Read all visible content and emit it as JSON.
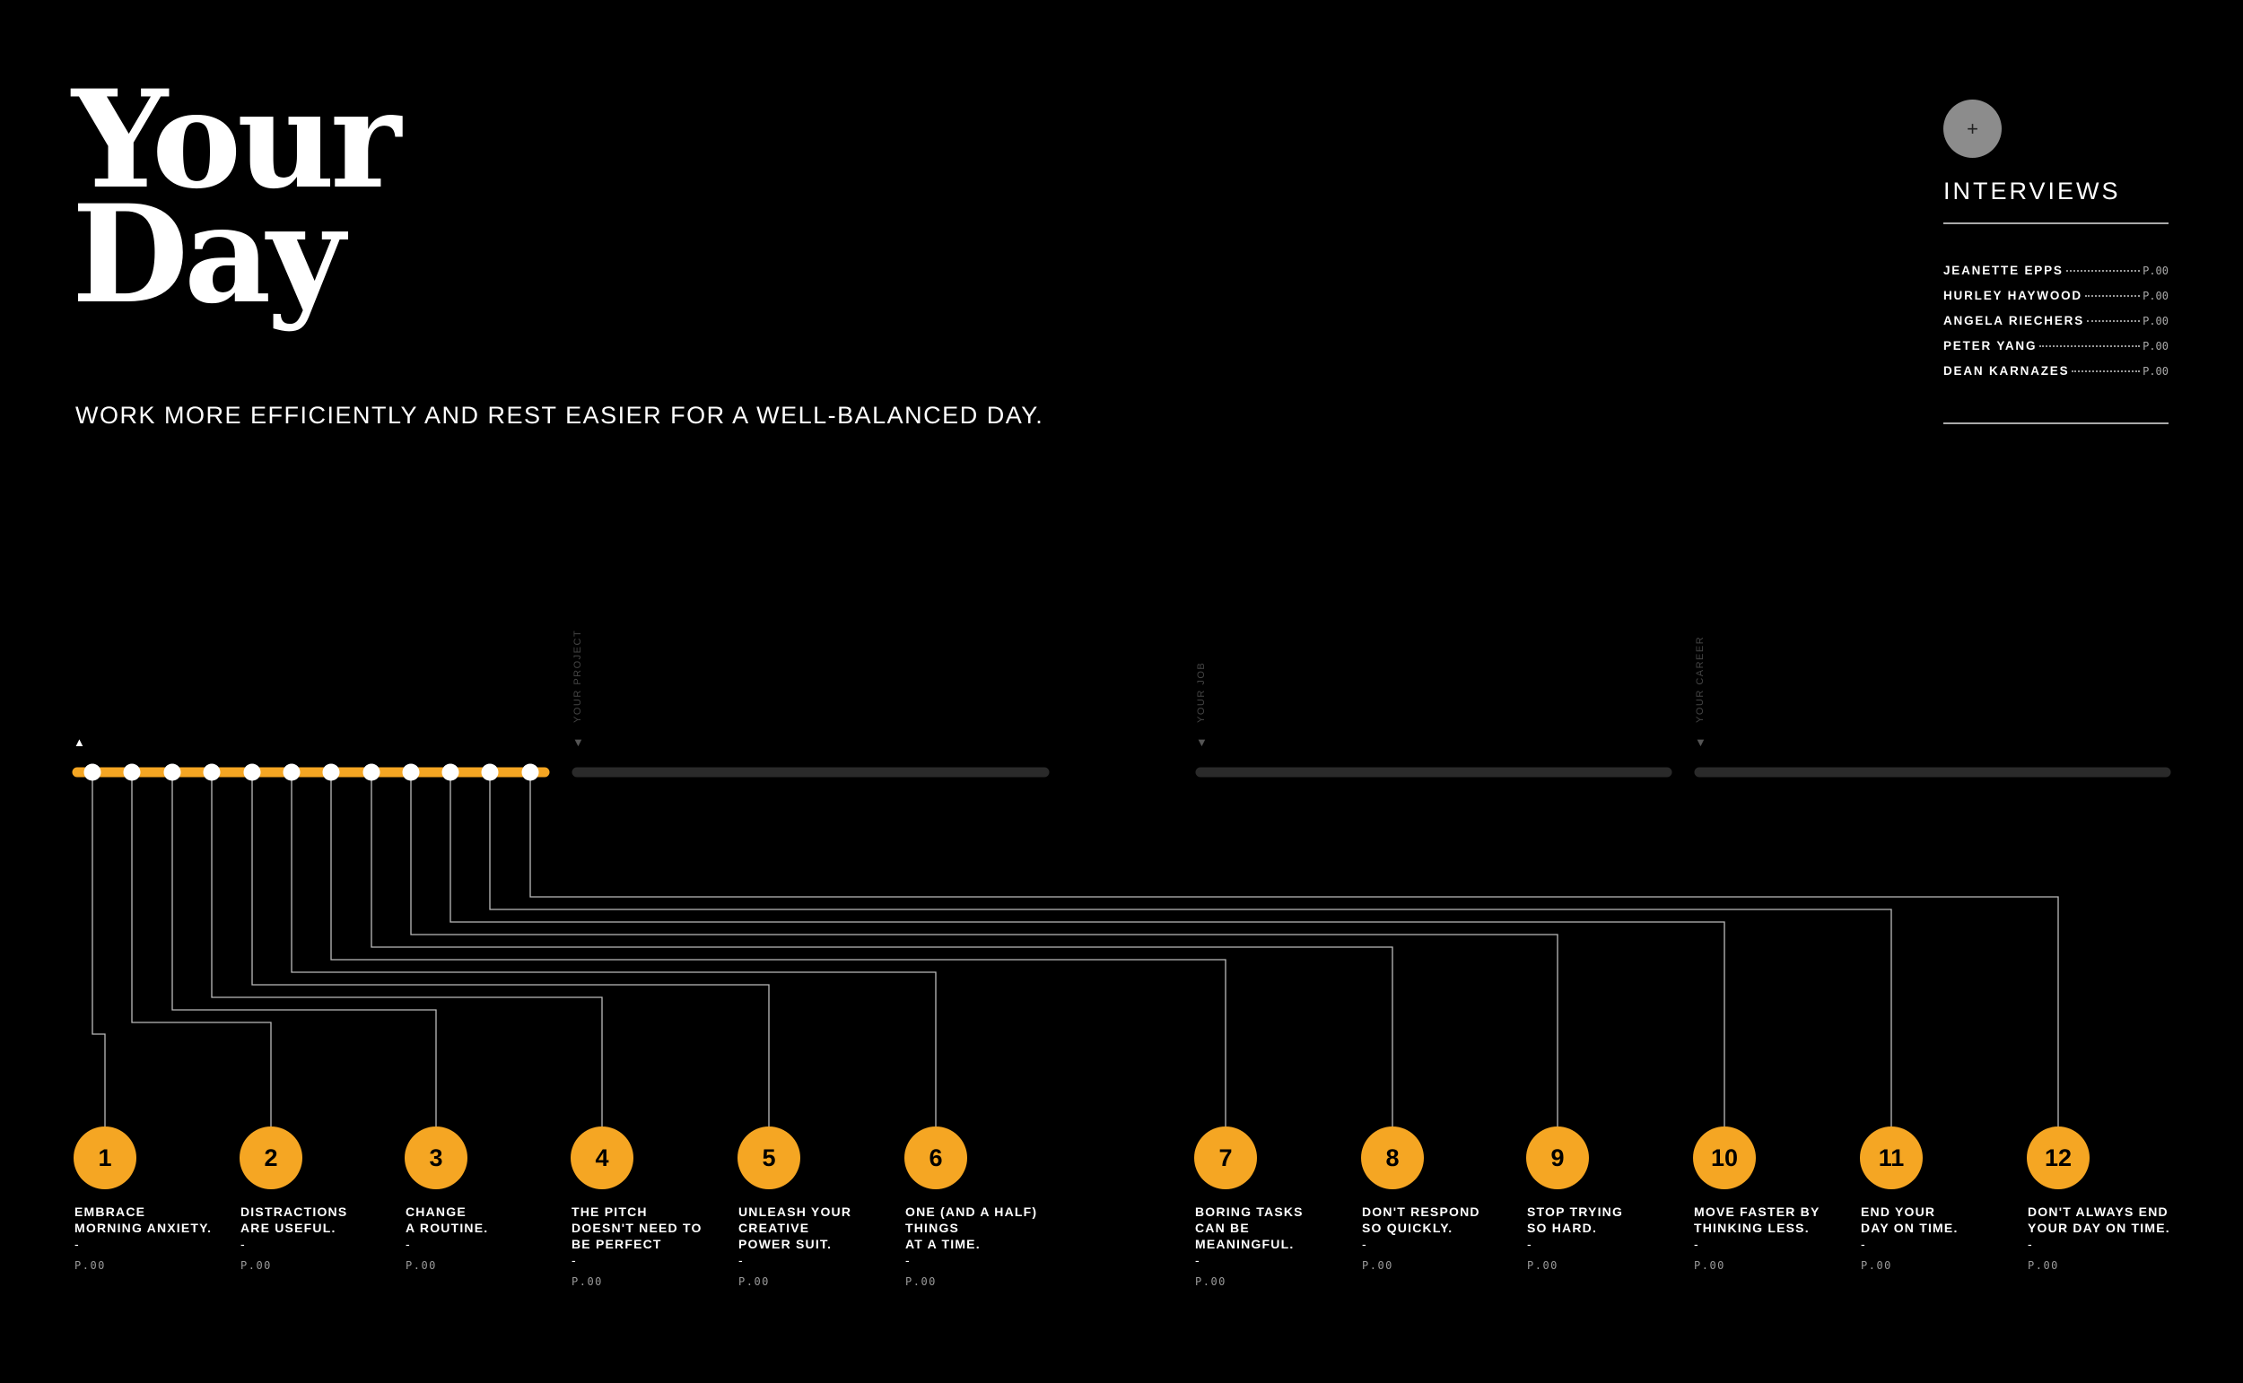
{
  "title": {
    "line1": "Your",
    "line2": "Day"
  },
  "subtitle": "WORK MORE EFFICIENTLY AND REST EASIER FOR A WELL-BALANCED DAY.",
  "interviews": {
    "button_label": "+",
    "heading": "INTERVIEWS",
    "items": [
      {
        "name": "JEANETTE EPPS",
        "page": "P.00"
      },
      {
        "name": "HURLEY HAYWOOD",
        "page": "P.00"
      },
      {
        "name": "ANGELA RIECHERS",
        "page": "P.00"
      },
      {
        "name": "PETER YANG",
        "page": "P.00"
      },
      {
        "name": "DEAN KARNAZES",
        "page": "P.00"
      }
    ]
  },
  "sections": {
    "your_day_marker": "▲",
    "your_project": "YOUR PROJECT",
    "your_job": "YOUR JOB",
    "your_career": "YOUR CAREER",
    "down_marker": "▼"
  },
  "steps": [
    {
      "number": "1",
      "lines": [
        "EMBRACE",
        "MORNING ANXIETY."
      ],
      "dash": "-",
      "page": "P.00"
    },
    {
      "number": "2",
      "lines": [
        "DISTRACTIONS",
        "ARE USEFUL."
      ],
      "dash": "-",
      "page": "P.00"
    },
    {
      "number": "3",
      "lines": [
        "CHANGE",
        "A ROUTINE."
      ],
      "dash": "-",
      "page": "P.00"
    },
    {
      "number": "4",
      "lines": [
        "THE PITCH",
        "DOESN'T NEED TO",
        "BE PERFECT"
      ],
      "dash": "-",
      "page": "P.00"
    },
    {
      "number": "5",
      "lines": [
        "UNLEASH YOUR",
        "CREATIVE",
        "POWER SUIT."
      ],
      "dash": "-",
      "page": "P.00"
    },
    {
      "number": "6",
      "lines": [
        "ONE (AND A HALF)",
        "THINGS",
        "AT A TIME."
      ],
      "dash": "-",
      "page": "P.00"
    },
    {
      "number": "7",
      "lines": [
        "BORING TASKS",
        "CAN BE",
        "MEANINGFUL."
      ],
      "dash": "-",
      "page": "P.00"
    },
    {
      "number": "8",
      "lines": [
        "DON'T RESPOND",
        "SO QUICKLY."
      ],
      "dash": "-",
      "page": "P.00"
    },
    {
      "number": "9",
      "lines": [
        "STOP TRYING",
        "SO HARD."
      ],
      "dash": "-",
      "page": "P.00"
    },
    {
      "number": "10",
      "lines": [
        "MOVE FASTER BY",
        "THINKING LESS."
      ],
      "dash": "-",
      "page": "P.00"
    },
    {
      "number": "11",
      "lines": [
        "END YOUR",
        "DAY ON TIME."
      ],
      "dash": "-",
      "page": "P.00"
    },
    {
      "number": "12",
      "lines": [
        "DON'T ALWAYS END",
        "YOUR DAY ON TIME."
      ],
      "dash": "-",
      "page": "P.00"
    }
  ],
  "colors": {
    "accent": "#f5a623",
    "track": "#2a2a2a",
    "line": "#bbbbbb",
    "background": "#000000"
  }
}
